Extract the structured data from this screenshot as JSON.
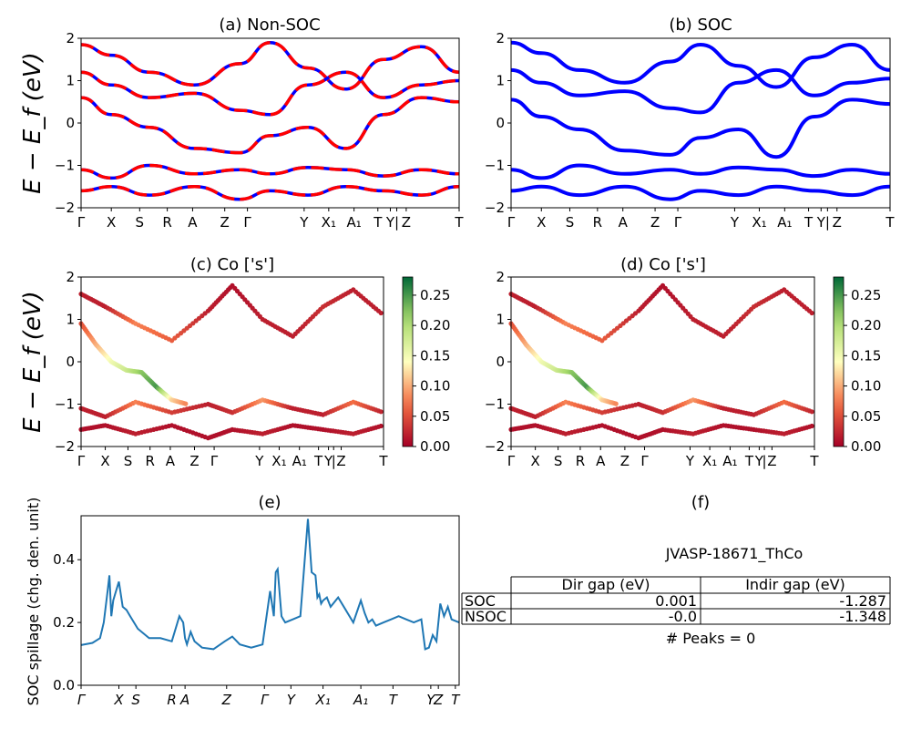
{
  "colors": {
    "red": "#ff0000",
    "blue": "#0000ff",
    "spillage": "#1f77b4"
  },
  "ylabel_big": "E − E_f (eV)",
  "kpath_top": [
    "Γ",
    "X",
    "S",
    "R",
    "A",
    "Z",
    "Γ",
    "Y",
    "X₁",
    "A₁",
    "T",
    "Y",
    "|",
    "Z",
    "T"
  ],
  "kpath_mid": [
    "Γ",
    "X",
    "S",
    "R",
    "A",
    "Z",
    "Γ",
    "Y",
    "X₁",
    "A₁",
    "T",
    "Y",
    "|",
    "Z",
    "T"
  ],
  "colorbar": {
    "ticks": [
      "0.00",
      "0.05",
      "0.10",
      "0.15",
      "0.20",
      "0.25"
    ],
    "range": [
      0,
      0.28
    ]
  },
  "chart_data": [
    {
      "id": "a",
      "type": "line",
      "title": "(a) Non-SOC",
      "ylabel": "E − E_f (eV)",
      "ylim": [
        -2,
        2
      ],
      "yticks": [
        "2",
        "1",
        "0",
        "−1",
        "−2"
      ],
      "xticks": [
        "Γ",
        "X",
        "S",
        "R",
        "A",
        "Z",
        "Γ",
        "Y",
        "X₁",
        "A₁",
        "T",
        "Y",
        "|",
        "Z",
        "T"
      ],
      "style": "red dashed over blue (spin up / spin down)",
      "series": [
        {
          "name": "band-1",
          "x": [
            0,
            0.08,
            0.18,
            0.3,
            0.42,
            0.5,
            0.6,
            0.7,
            0.8,
            0.9,
            1.0
          ],
          "y": [
            1.85,
            1.6,
            1.2,
            0.9,
            1.4,
            1.9,
            1.3,
            0.8,
            1.5,
            1.8,
            1.2
          ]
        },
        {
          "name": "band-2",
          "x": [
            0,
            0.08,
            0.18,
            0.3,
            0.42,
            0.5,
            0.6,
            0.7,
            0.8,
            0.9,
            1.0
          ],
          "y": [
            1.2,
            0.9,
            0.6,
            0.7,
            0.3,
            0.2,
            0.9,
            1.2,
            0.6,
            0.9,
            1.0
          ]
        },
        {
          "name": "band-3",
          "x": [
            0,
            0.08,
            0.18,
            0.3,
            0.42,
            0.5,
            0.6,
            0.7,
            0.8,
            0.9,
            1.0
          ],
          "y": [
            0.6,
            0.2,
            -0.1,
            -0.6,
            -0.7,
            -0.3,
            -0.1,
            -0.6,
            0.2,
            0.6,
            0.5
          ]
        },
        {
          "name": "band-4",
          "x": [
            0,
            0.08,
            0.18,
            0.3,
            0.42,
            0.5,
            0.6,
            0.7,
            0.8,
            0.9,
            1.0
          ],
          "y": [
            -1.1,
            -1.3,
            -1.0,
            -1.2,
            -1.1,
            -1.2,
            -1.05,
            -1.1,
            -1.25,
            -1.1,
            -1.2
          ]
        },
        {
          "name": "band-5",
          "x": [
            0,
            0.08,
            0.18,
            0.3,
            0.42,
            0.5,
            0.6,
            0.7,
            0.8,
            0.9,
            1.0
          ],
          "y": [
            -1.6,
            -1.5,
            -1.7,
            -1.5,
            -1.8,
            -1.6,
            -1.7,
            -1.5,
            -1.6,
            -1.7,
            -1.5
          ]
        }
      ]
    },
    {
      "id": "b",
      "type": "line",
      "title": "(b) SOC",
      "ylabel": "",
      "ylim": [
        -2,
        2
      ],
      "yticks": [
        "2",
        "1",
        "0",
        "−1",
        "−2"
      ],
      "xticks": [
        "Γ",
        "X",
        "S",
        "R",
        "A",
        "Z",
        "Γ",
        "Y",
        "X₁",
        "A₁",
        "T",
        "Y",
        "|",
        "Z",
        "T"
      ],
      "style": "solid blue",
      "series": [
        {
          "name": "band-1",
          "x": [
            0,
            0.08,
            0.18,
            0.3,
            0.42,
            0.5,
            0.6,
            0.7,
            0.8,
            0.9,
            1.0
          ],
          "y": [
            1.9,
            1.65,
            1.25,
            0.95,
            1.45,
            1.85,
            1.35,
            0.85,
            1.55,
            1.85,
            1.25
          ]
        },
        {
          "name": "band-2",
          "x": [
            0,
            0.08,
            0.18,
            0.3,
            0.42,
            0.5,
            0.6,
            0.7,
            0.8,
            0.9,
            1.0
          ],
          "y": [
            1.25,
            0.95,
            0.65,
            0.75,
            0.35,
            0.25,
            0.95,
            1.25,
            0.65,
            0.95,
            1.05
          ]
        },
        {
          "name": "band-3",
          "x": [
            0,
            0.08,
            0.18,
            0.3,
            0.42,
            0.5,
            0.6,
            0.7,
            0.8,
            0.9,
            1.0
          ],
          "y": [
            0.55,
            0.15,
            -0.15,
            -0.65,
            -0.75,
            -0.35,
            -0.15,
            -0.8,
            0.15,
            0.55,
            0.45
          ]
        },
        {
          "name": "band-4",
          "x": [
            0,
            0.08,
            0.18,
            0.3,
            0.42,
            0.5,
            0.6,
            0.7,
            0.8,
            0.9,
            1.0
          ],
          "y": [
            -1.1,
            -1.3,
            -1.0,
            -1.2,
            -1.1,
            -1.2,
            -1.05,
            -1.1,
            -1.25,
            -1.1,
            -1.2
          ]
        },
        {
          "name": "band-5",
          "x": [
            0,
            0.08,
            0.18,
            0.3,
            0.42,
            0.5,
            0.6,
            0.7,
            0.8,
            0.9,
            1.0
          ],
          "y": [
            -1.6,
            -1.5,
            -1.7,
            -1.5,
            -1.8,
            -1.6,
            -1.7,
            -1.5,
            -1.6,
            -1.7,
            -1.5
          ]
        }
      ]
    },
    {
      "id": "c",
      "type": "scatter",
      "title": "(c)  Co ['s']",
      "ylabel": "E − E_f (eV)",
      "ylim": [
        -2,
        2
      ],
      "yticks": [
        "2",
        "1",
        "0",
        "−1",
        "−2"
      ],
      "xticks": [
        "Γ",
        "X",
        "S",
        "R",
        "A",
        "Z",
        "Γ",
        "Y",
        "X₁",
        "A₁",
        "T",
        "Y",
        "|",
        "Z",
        "T"
      ],
      "colorbar_label_range": [
        0,
        0.28
      ],
      "series": [
        {
          "name": "band-1",
          "x": [
            0,
            0.08,
            0.18,
            0.3,
            0.42,
            0.5,
            0.6,
            0.7,
            0.8,
            0.9,
            1.0
          ],
          "y": [
            1.6,
            1.3,
            0.9,
            0.5,
            1.2,
            1.8,
            1.0,
            0.6,
            1.3,
            1.7,
            1.1
          ],
          "w": [
            0.02,
            0.02,
            0.08,
            0.06,
            0.02,
            0.01,
            0.02,
            0.02,
            0.03,
            0.02,
            0.02
          ]
        },
        {
          "name": "band-2",
          "x": [
            0,
            0.05,
            0.1,
            0.15,
            0.2,
            0.25,
            0.3,
            0.35
          ],
          "y": [
            0.9,
            0.4,
            0.0,
            -0.2,
            -0.25,
            -0.6,
            -0.9,
            -1.0
          ],
          "w": [
            0.05,
            0.1,
            0.15,
            0.18,
            0.22,
            0.25,
            0.12,
            0.08
          ]
        },
        {
          "name": "band-3",
          "x": [
            0,
            0.08,
            0.18,
            0.3,
            0.42,
            0.5,
            0.6,
            0.7,
            0.8,
            0.9,
            1.0
          ],
          "y": [
            -1.1,
            -1.3,
            -0.95,
            -1.2,
            -1.0,
            -1.2,
            -0.9,
            -1.1,
            -1.25,
            -0.95,
            -1.2
          ],
          "w": [
            0.02,
            0.02,
            0.08,
            0.04,
            0.02,
            0.03,
            0.09,
            0.02,
            0.02,
            0.07,
            0.02
          ]
        },
        {
          "name": "band-4",
          "x": [
            0,
            0.08,
            0.18,
            0.3,
            0.42,
            0.5,
            0.6,
            0.7,
            0.8,
            0.9,
            1.0
          ],
          "y": [
            -1.6,
            -1.5,
            -1.7,
            -1.5,
            -1.8,
            -1.6,
            -1.7,
            -1.5,
            -1.6,
            -1.7,
            -1.5
          ],
          "w": [
            0.01,
            0.01,
            0.02,
            0.01,
            0.01,
            0.01,
            0.02,
            0.01,
            0.01,
            0.02,
            0.01
          ]
        }
      ]
    },
    {
      "id": "d",
      "type": "scatter",
      "title": "(d) Co ['s']",
      "ylabel": "",
      "ylim": [
        -2,
        2
      ],
      "yticks": [
        "2",
        "1",
        "0",
        "−1",
        "−2"
      ],
      "xticks": [
        "Γ",
        "X",
        "S",
        "R",
        "A",
        "Z",
        "Γ",
        "Y",
        "X₁",
        "A₁",
        "T",
        "Y",
        "|",
        "Z",
        "T"
      ],
      "colorbar_label_range": [
        0,
        0.28
      ],
      "series": [
        {
          "name": "band-1",
          "x": [
            0,
            0.08,
            0.18,
            0.3,
            0.42,
            0.5,
            0.6,
            0.7,
            0.8,
            0.9,
            1.0
          ],
          "y": [
            1.6,
            1.3,
            0.9,
            0.5,
            1.2,
            1.8,
            1.0,
            0.6,
            1.3,
            1.7,
            1.1
          ],
          "w": [
            0.02,
            0.02,
            0.08,
            0.06,
            0.02,
            0.01,
            0.02,
            0.02,
            0.03,
            0.02,
            0.02
          ]
        },
        {
          "name": "band-2",
          "x": [
            0,
            0.05,
            0.1,
            0.15,
            0.2,
            0.25,
            0.3,
            0.35
          ],
          "y": [
            0.9,
            0.4,
            0.0,
            -0.2,
            -0.25,
            -0.6,
            -0.9,
            -1.0
          ],
          "w": [
            0.05,
            0.1,
            0.15,
            0.18,
            0.22,
            0.25,
            0.12,
            0.08
          ]
        },
        {
          "name": "band-3",
          "x": [
            0,
            0.08,
            0.18,
            0.3,
            0.42,
            0.5,
            0.6,
            0.7,
            0.8,
            0.9,
            1.0
          ],
          "y": [
            -1.1,
            -1.3,
            -0.95,
            -1.2,
            -1.0,
            -1.2,
            -0.9,
            -1.1,
            -1.25,
            -0.95,
            -1.2
          ],
          "w": [
            0.02,
            0.02,
            0.08,
            0.04,
            0.02,
            0.03,
            0.09,
            0.02,
            0.02,
            0.07,
            0.02
          ]
        },
        {
          "name": "band-4",
          "x": [
            0,
            0.08,
            0.18,
            0.3,
            0.42,
            0.5,
            0.6,
            0.7,
            0.8,
            0.9,
            1.0
          ],
          "y": [
            -1.6,
            -1.5,
            -1.7,
            -1.5,
            -1.8,
            -1.6,
            -1.7,
            -1.5,
            -1.6,
            -1.7,
            -1.5
          ],
          "w": [
            0.01,
            0.01,
            0.02,
            0.01,
            0.01,
            0.01,
            0.02,
            0.01,
            0.01,
            0.02,
            0.01
          ]
        }
      ]
    },
    {
      "id": "e",
      "type": "line",
      "title": "(e)",
      "ylabel": "SOC spillage (chg. den. unit)",
      "ylim": [
        0,
        0.54
      ],
      "yticks": [
        "0.0",
        "0.2",
        "0.4"
      ],
      "xticks": [
        "Γ",
        "X",
        "S",
        "R",
        "A",
        "Z",
        "Γ",
        "Y",
        "X₁",
        "A₁",
        "T",
        "Y",
        "Z",
        "T"
      ],
      "series": [
        {
          "name": "spillage",
          "x": [
            0,
            0.03,
            0.05,
            0.06,
            0.07,
            0.075,
            0.08,
            0.085,
            0.09,
            0.1,
            0.11,
            0.12,
            0.13,
            0.15,
            0.18,
            0.21,
            0.24,
            0.26,
            0.27,
            0.275,
            0.28,
            0.29,
            0.3,
            0.32,
            0.35,
            0.38,
            0.4,
            0.42,
            0.45,
            0.48,
            0.5,
            0.51,
            0.515,
            0.52,
            0.53,
            0.535,
            0.54,
            0.56,
            0.58,
            0.6,
            0.61,
            0.62,
            0.625,
            0.63,
            0.635,
            0.64,
            0.65,
            0.66,
            0.68,
            0.7,
            0.72,
            0.74,
            0.75,
            0.76,
            0.77,
            0.78,
            0.8,
            0.82,
            0.84,
            0.86,
            0.88,
            0.9,
            0.91,
            0.92,
            0.93,
            0.94,
            0.95,
            0.96,
            0.97,
            0.98,
            1.0
          ],
          "y": [
            0.128,
            0.135,
            0.15,
            0.2,
            0.3,
            0.35,
            0.22,
            0.27,
            0.29,
            0.33,
            0.25,
            0.24,
            0.22,
            0.18,
            0.15,
            0.15,
            0.14,
            0.22,
            0.2,
            0.15,
            0.13,
            0.17,
            0.14,
            0.12,
            0.115,
            0.14,
            0.155,
            0.13,
            0.12,
            0.13,
            0.3,
            0.22,
            0.36,
            0.37,
            0.22,
            0.21,
            0.2,
            0.21,
            0.22,
            0.53,
            0.36,
            0.35,
            0.28,
            0.29,
            0.26,
            0.27,
            0.28,
            0.25,
            0.28,
            0.24,
            0.2,
            0.27,
            0.23,
            0.2,
            0.21,
            0.19,
            0.2,
            0.21,
            0.22,
            0.21,
            0.2,
            0.21,
            0.115,
            0.12,
            0.16,
            0.14,
            0.26,
            0.22,
            0.25,
            0.21,
            0.2
          ]
        }
      ]
    }
  ],
  "panel_f": {
    "title": "(f)",
    "material": "JVASP-18671_ThCo",
    "columns": [
      "",
      "Dir gap (eV)",
      "Indir gap (eV)"
    ],
    "rows": [
      [
        "SOC",
        "0.001",
        "-1.287"
      ],
      [
        "NSOC",
        "-0.0",
        "-1.348"
      ]
    ],
    "peaks": "# Peaks = 0"
  }
}
